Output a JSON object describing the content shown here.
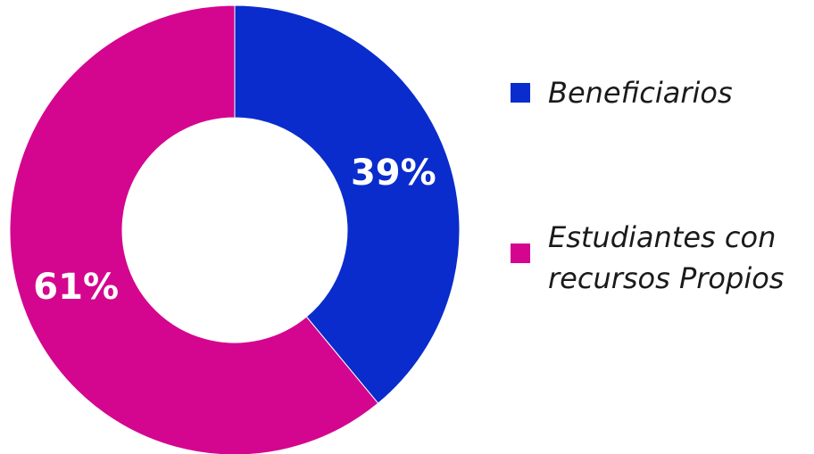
{
  "chart_data": {
    "type": "pie",
    "donut": true,
    "slices": [
      {
        "name": "Beneficiarios",
        "value": 39,
        "label": "39%",
        "color": "#0a2ccc"
      },
      {
        "name": "Estudiantes con recursos Propios",
        "label_lines": [
          "Estudiantes con",
          "recursos Propios"
        ],
        "value": 61,
        "label": "61%",
        "color": "#d4058f"
      }
    ],
    "legend_position": "right"
  }
}
